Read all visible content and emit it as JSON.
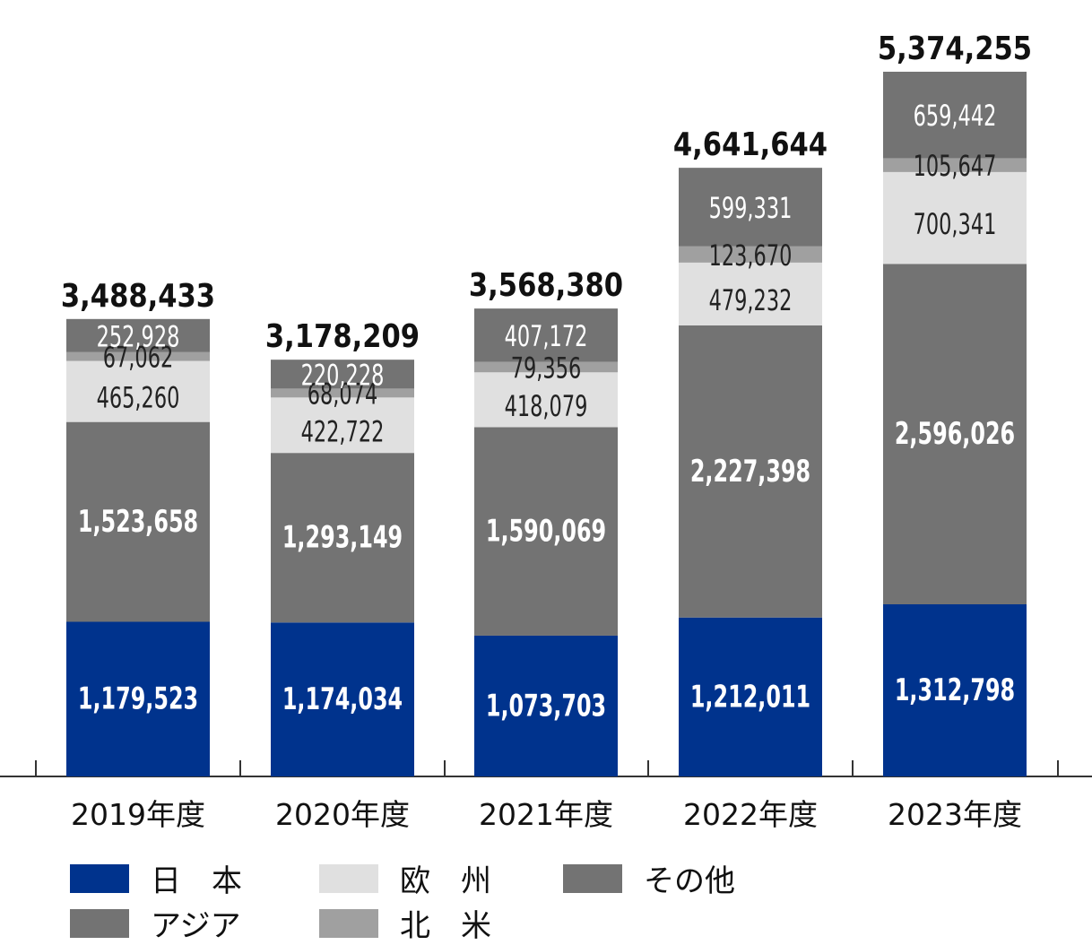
{
  "chart_data": {
    "type": "bar",
    "stacked": true,
    "categories": [
      "2019年度",
      "2020年度",
      "2021年度",
      "2022年度",
      "2023年度"
    ],
    "series": [
      {
        "name": "日　本",
        "color": "#00338d",
        "values": [
          1179523,
          1174034,
          1073703,
          1212011,
          1312798
        ]
      },
      {
        "name": "アジア",
        "color": "#737373",
        "values": [
          1523658,
          1293149,
          1590069,
          2227398,
          2596026
        ]
      },
      {
        "name": "欧　州",
        "color": "#e0e0e0",
        "values": [
          465260,
          422722,
          418079,
          479232,
          700341
        ]
      },
      {
        "name": "北　米",
        "color": "#a0a0a0",
        "values": [
          67062,
          68074,
          79356,
          123670,
          105647
        ]
      },
      {
        "name": "その他",
        "color": "#737373",
        "values": [
          252928,
          220228,
          407172,
          599331,
          659442
        ]
      }
    ],
    "value_labels": [
      [
        "1,179,523",
        "1,174,034",
        "1,073,703",
        "1,212,011",
        "1,312,798"
      ],
      [
        "1,523,658",
        "1,293,149",
        "1,590,069",
        "2,227,398",
        "2,596,026"
      ],
      [
        "465,260",
        "422,722",
        "418,079",
        "479,232",
        "700,341"
      ],
      [
        "67,062",
        "68,074",
        "79,356",
        "123,670",
        "105,647"
      ],
      [
        "252,928",
        "220,228",
        "407,172",
        "599,331",
        "659,442"
      ]
    ],
    "totals": [
      3488433,
      3178209,
      3568380,
      4641644,
      5374255
    ],
    "total_labels": [
      "3,488,433",
      "3,178,209",
      "3,568,380",
      "4,641,644",
      "5,374,255"
    ],
    "ylim": [
      0,
      5500000
    ],
    "grid": false,
    "legend_position": "bottom-left"
  },
  "legend": [
    {
      "label": "日　本",
      "color": "#00338d"
    },
    {
      "label": "欧　州",
      "color": "#e0e0e0"
    },
    {
      "label": "その他",
      "color": "#737373"
    },
    {
      "label": "アジア",
      "color": "#737373"
    },
    {
      "label": "北　米",
      "color": "#a0a0a0"
    }
  ]
}
